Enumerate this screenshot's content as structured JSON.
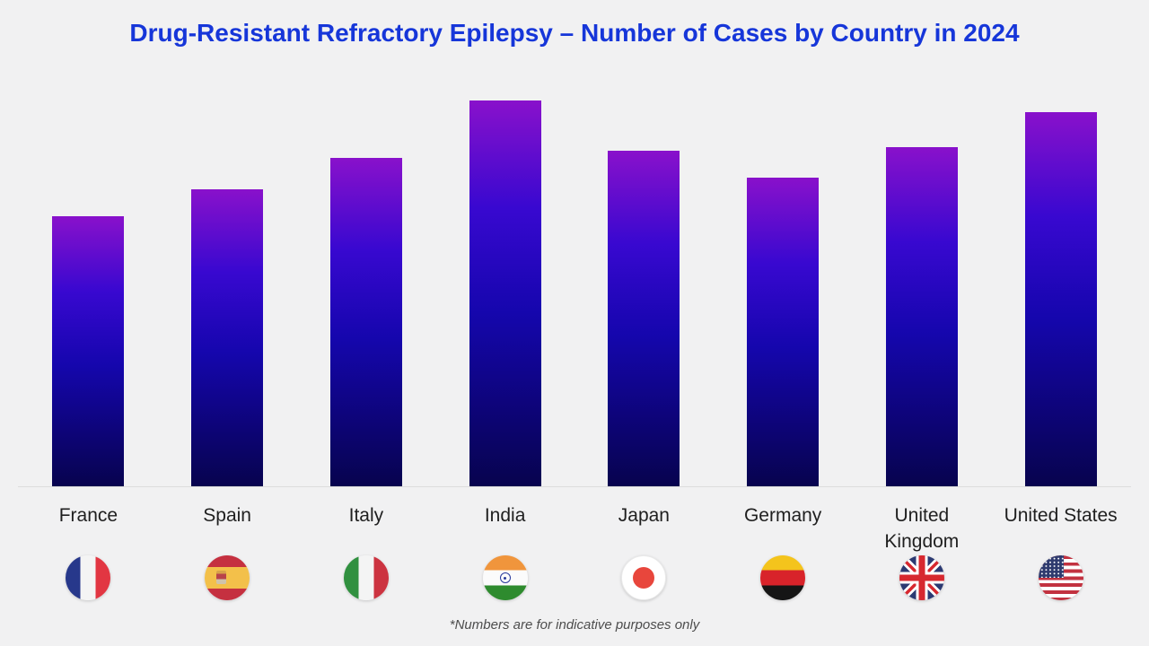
{
  "page": {
    "background_color": "#f1f1f2"
  },
  "header": {
    "title": "Drug-Resistant Refractory Epilepsy – Number of Cases by Country in 2024",
    "title_color": "#1636d9"
  },
  "chart_data": {
    "type": "bar",
    "title": "Drug-Resistant Refractory Epilepsy – Number of Cases by Country in 2024",
    "categories": [
      "France",
      "Spain",
      "Italy",
      "India",
      "Japan",
      "Germany",
      "United Kingdom",
      "United States"
    ],
    "values": [
      70,
      77,
      85,
      100,
      87,
      80,
      88,
      97
    ],
    "value_note": "no numeric axis or data labels shown; values estimated from bar heights relative to India = 100",
    "ylim": [
      0,
      100
    ],
    "xlabel": "",
    "ylabel": "",
    "grid": false,
    "legend": false,
    "bar_gradient": {
      "top": "#8911cb",
      "middle": "#2f07d1",
      "bottom": "#07034e"
    },
    "flag_icons": [
      "flag-france-icon",
      "flag-spain-icon",
      "flag-italy-icon",
      "flag-india-icon",
      "flag-japan-icon",
      "flag-germany-icon",
      "flag-uk-icon",
      "flag-usa-icon"
    ]
  },
  "footnote": {
    "text": "*Numbers are for indicative purposes only"
  }
}
